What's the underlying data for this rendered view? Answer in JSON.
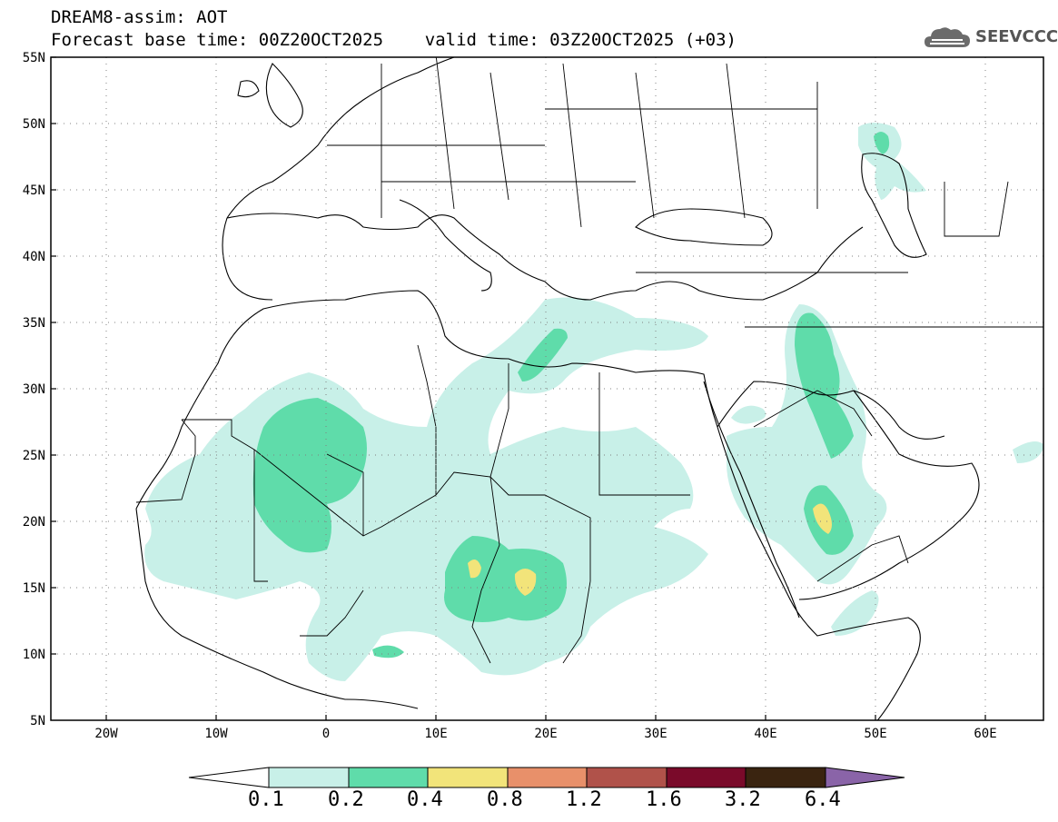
{
  "title": {
    "line1": "DREAM8-assim: AOT",
    "line2": "Forecast base time: 00Z20OCT2025    valid time: 03Z20OCT2025 (+03)"
  },
  "logo": {
    "text": "SEEVCCC",
    "icon": "cloud-icon"
  },
  "map": {
    "lon_range": [
      -25,
      65
    ],
    "lat_range": [
      5,
      55
    ],
    "lat_ticks": [
      "55N",
      "50N",
      "45N",
      "40N",
      "35N",
      "30N",
      "25N",
      "20N",
      "15N",
      "10N",
      "5N"
    ],
    "lon_ticks": [
      "20W",
      "10W",
      "0",
      "10E",
      "20E",
      "30E",
      "40E",
      "50E",
      "60E"
    ],
    "grid": "dotted"
  },
  "colorbar": {
    "labels": [
      "0.1",
      "0.2",
      "0.4",
      "0.8",
      "1.2",
      "1.6",
      "3.2",
      "6.4"
    ],
    "colors": [
      "#c8f0e8",
      "#5fdcaa",
      "#f2e47a",
      "#e8906a",
      "#b0524a",
      "#7a0a2a",
      "#3a2410",
      "#8a64a8"
    ]
  },
  "colors": {
    "level1": "#c8f0e8",
    "level2": "#5fdcaa",
    "level3": "#f2e47a"
  }
}
